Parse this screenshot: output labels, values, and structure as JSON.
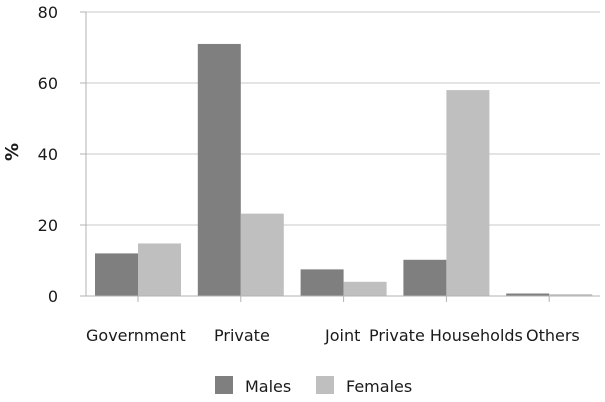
{
  "chart_data": {
    "type": "bar",
    "categories": [
      "Government",
      "Private",
      "Joint",
      "Private Households",
      "Others"
    ],
    "series": [
      {
        "name": "Males",
        "values": [
          12,
          71,
          7.5,
          10.2,
          0.7
        ],
        "color": "#7f7f7f"
      },
      {
        "name": "Females",
        "values": [
          14.8,
          23.2,
          4,
          58,
          0.5
        ],
        "color": "#bfbfbf"
      }
    ],
    "title": "",
    "xlabel": "",
    "ylabel": "%",
    "ylim": [
      0,
      80
    ],
    "yticks": [
      0,
      20,
      40,
      60,
      80
    ],
    "grid": true,
    "legend_position": "bottom"
  }
}
